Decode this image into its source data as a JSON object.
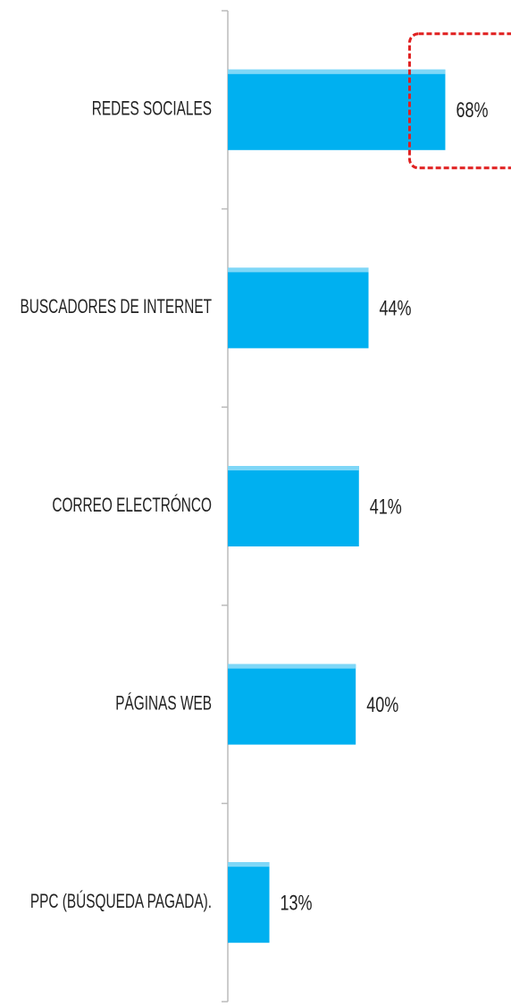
{
  "chart_data": {
    "type": "bar",
    "orientation": "horizontal",
    "categories": [
      "REDES SOCIALES",
      "BUSCADORES DE INTERNET",
      "CORREO ELECTRÓNCO",
      "PÁGINAS WEB",
      "PPC (BÚSQUEDA PAGADA)."
    ],
    "values": [
      68,
      44,
      41,
      40,
      13
    ],
    "value_labels": [
      "68%",
      "44%",
      "41%",
      "40%",
      "13%"
    ],
    "color": "#00b0f0"
  }
}
